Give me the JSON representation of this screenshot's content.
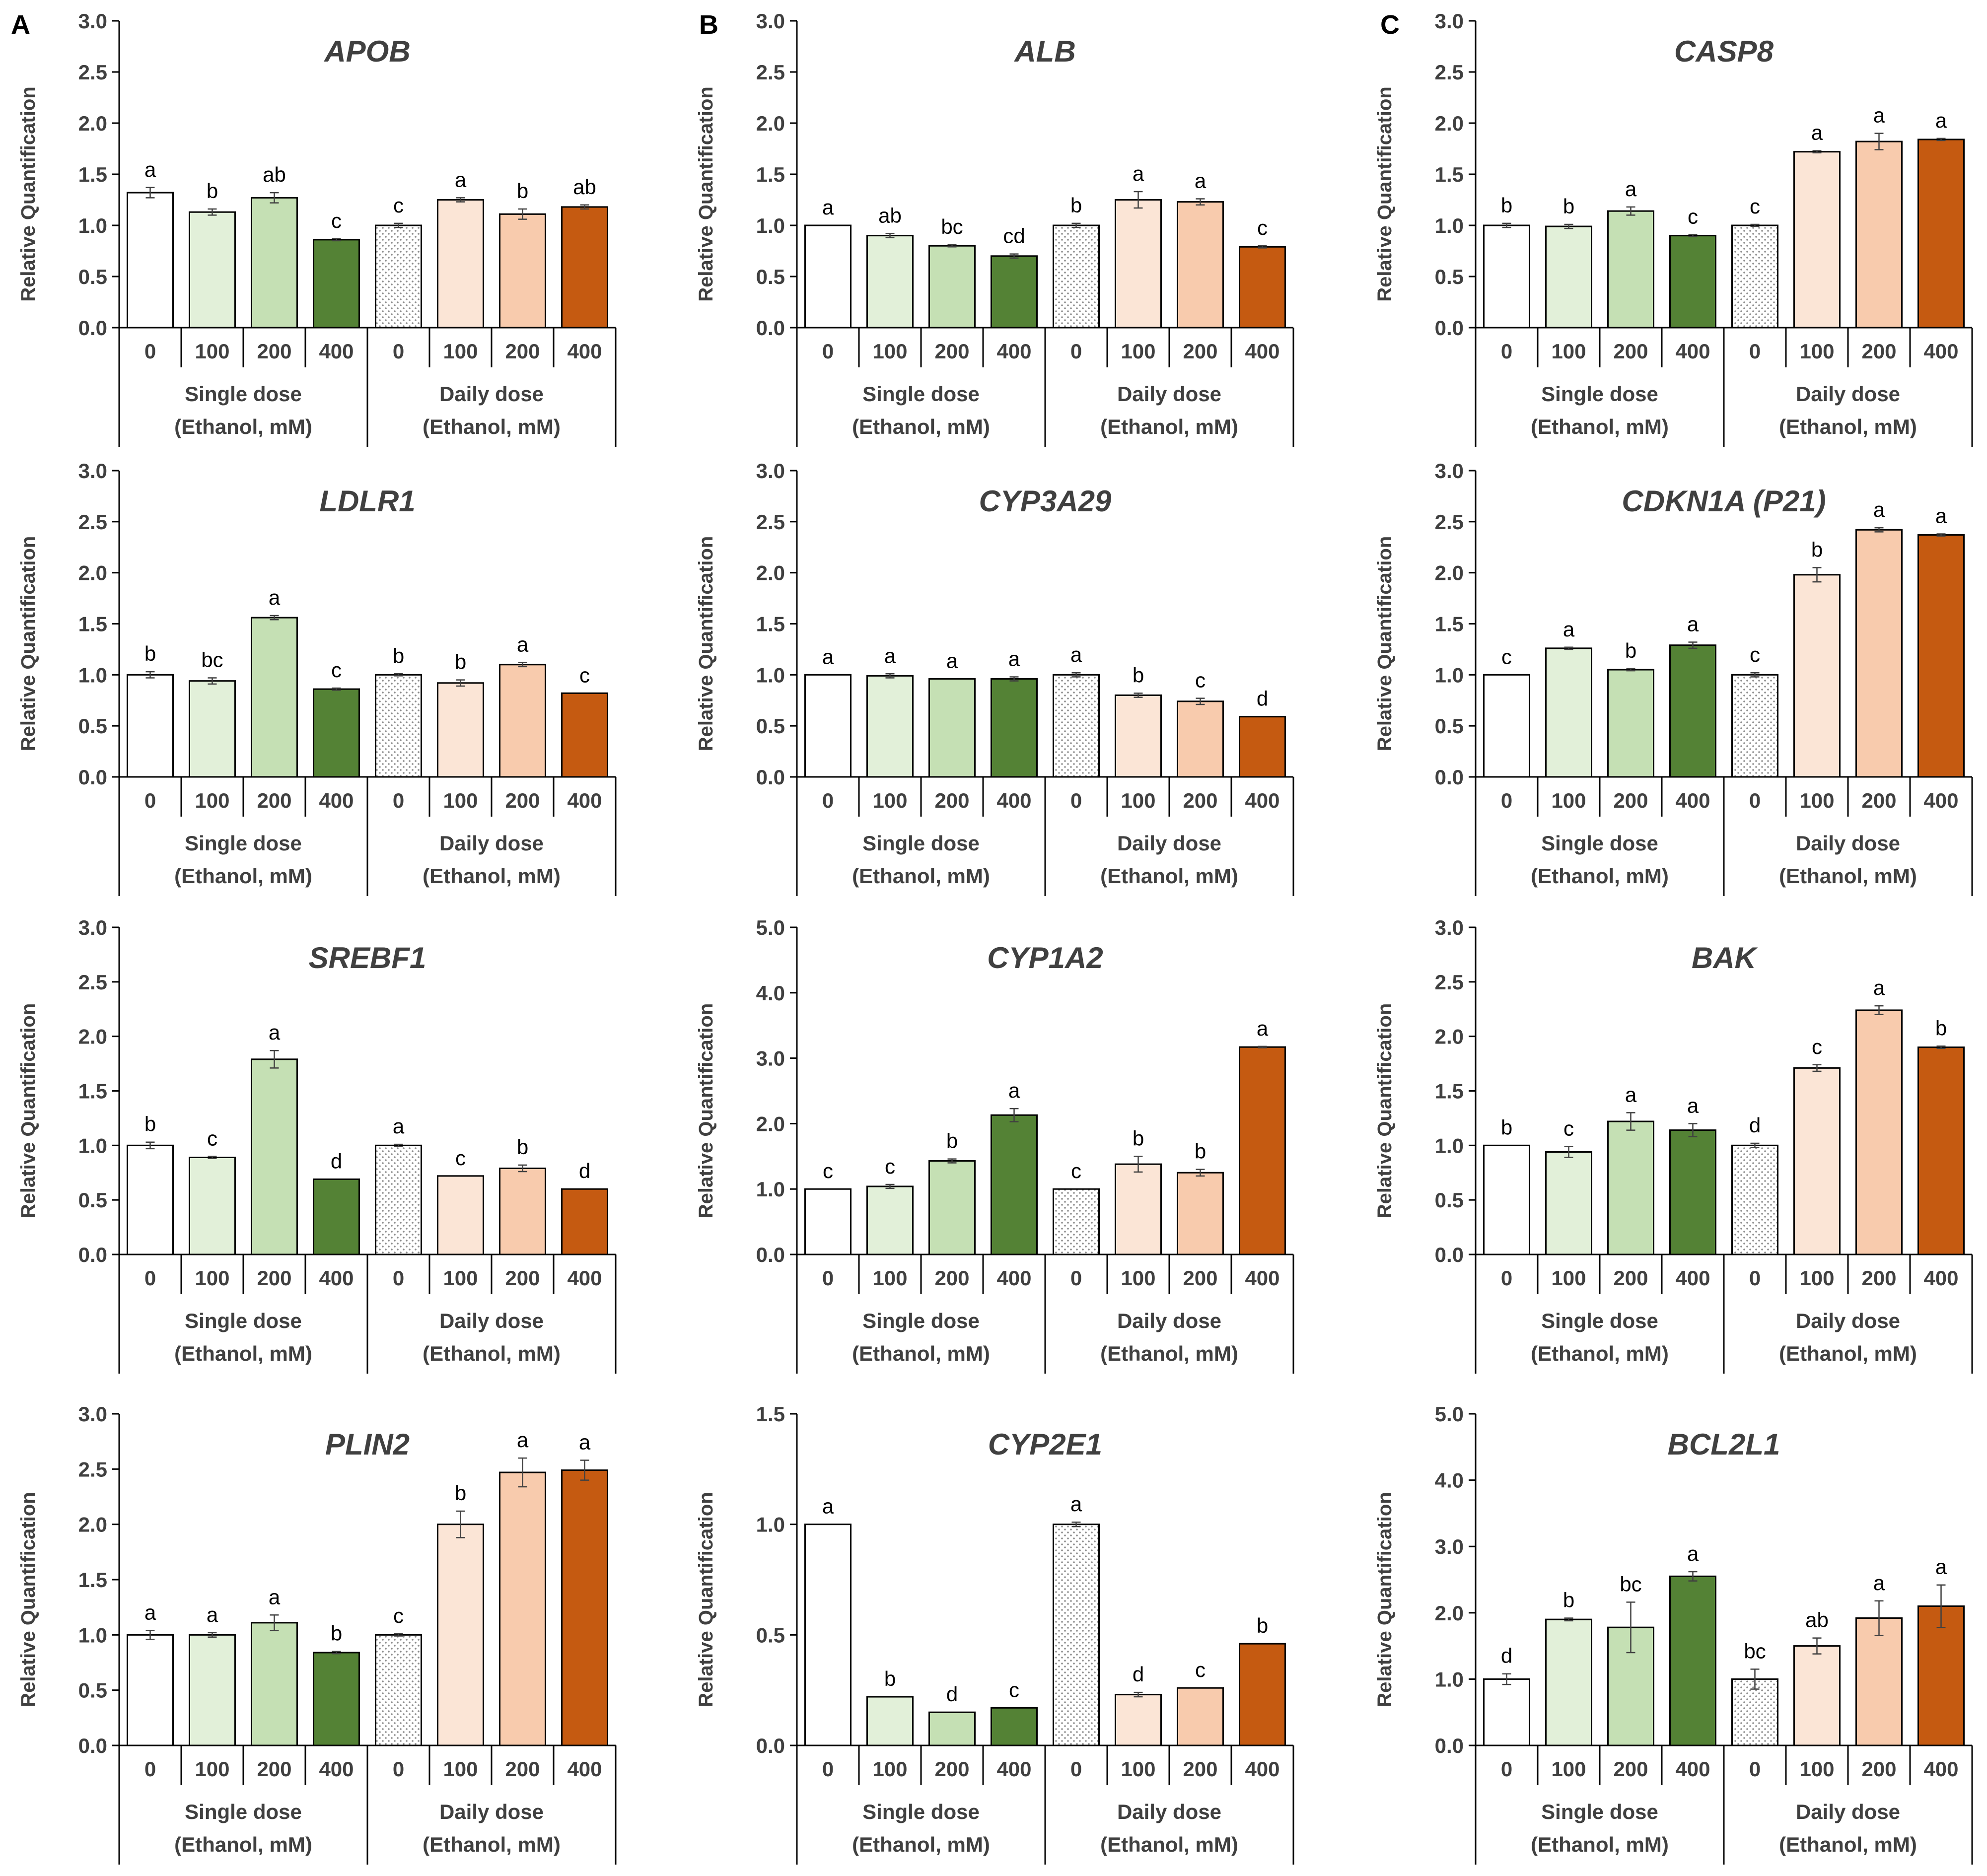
{
  "figure": {
    "panel_labels": [
      "A",
      "B",
      "C"
    ],
    "y_axis_label": "Relative Quantification",
    "dose_levels": [
      "0",
      "100",
      "200",
      "400"
    ],
    "group_names": [
      "Single dose",
      "Daily dose"
    ],
    "group_unit": "(Ethanol, mM)"
  },
  "colors": {
    "bars": [
      "#ffffff",
      "#e2f0d9",
      "#c5e0b4",
      "#548235",
      "dotted",
      "#fbe5d6",
      "#f8cbad",
      "#c55a11"
    ],
    "axis": "#000000",
    "text": "#404040"
  },
  "chart_data": [
    {
      "type": "bar",
      "title": "APOB",
      "ylabel": "Relative Quantification",
      "ylim": [
        0,
        3.0
      ],
      "yticks": [
        "0.0",
        "0.5",
        "1.0",
        "1.5",
        "2.0",
        "2.5",
        "3.0"
      ],
      "values": [
        1.32,
        1.13,
        1.27,
        0.86,
        1.0,
        1.25,
        1.11,
        1.18
      ],
      "errors": [
        0.05,
        0.03,
        0.05,
        0.01,
        0.02,
        0.02,
        0.05,
        0.02
      ],
      "letters": [
        "a",
        "b",
        "ab",
        "c",
        "c",
        "a",
        "b",
        "ab"
      ]
    },
    {
      "type": "bar",
      "title": "ALB",
      "ylabel": "Relative Quantification",
      "ylim": [
        0,
        3.0
      ],
      "yticks": [
        "0.0",
        "0.5",
        "1.0",
        "1.5",
        "2.0",
        "2.5",
        "3.0"
      ],
      "values": [
        1.0,
        0.9,
        0.8,
        0.7,
        1.0,
        1.25,
        1.23,
        0.79
      ],
      "errors": [
        0.0,
        0.02,
        0.01,
        0.02,
        0.02,
        0.08,
        0.03,
        0.01
      ],
      "letters": [
        "a",
        "ab",
        "bc",
        "cd",
        "b",
        "a",
        "a",
        "c"
      ]
    },
    {
      "type": "bar",
      "title": "CASP8",
      "ylabel": "Relative Quantification",
      "ylim": [
        0,
        3.0
      ],
      "yticks": [
        "0.0",
        "0.5",
        "1.0",
        "1.5",
        "2.0",
        "2.5",
        "3.0"
      ],
      "values": [
        1.0,
        0.99,
        1.14,
        0.9,
        1.0,
        1.72,
        1.82,
        1.84
      ],
      "errors": [
        0.02,
        0.02,
        0.04,
        0.01,
        0.01,
        0.01,
        0.08,
        0.01
      ],
      "letters": [
        "b",
        "b",
        "a",
        "c",
        "c",
        "a",
        "a",
        "a"
      ]
    },
    {
      "type": "bar",
      "title": "LDLR1",
      "ylabel": "Relative Quantification",
      "ylim": [
        0,
        3.0
      ],
      "yticks": [
        "0.0",
        "0.5",
        "1.0",
        "1.5",
        "2.0",
        "2.5",
        "3.0"
      ],
      "values": [
        1.0,
        0.94,
        1.56,
        0.86,
        1.0,
        0.92,
        1.1,
        0.82
      ],
      "errors": [
        0.03,
        0.03,
        0.02,
        0.01,
        0.01,
        0.03,
        0.02,
        0.0
      ],
      "letters": [
        "b",
        "bc",
        "a",
        "c",
        "b",
        "b",
        "a",
        "c"
      ]
    },
    {
      "type": "bar",
      "title": "CYP3A29",
      "ylabel": "Relative Quantification",
      "ylim": [
        0,
        3.0
      ],
      "yticks": [
        "0.0",
        "0.5",
        "1.0",
        "1.5",
        "2.0",
        "2.5",
        "3.0"
      ],
      "values": [
        1.0,
        0.99,
        0.96,
        0.96,
        1.0,
        0.8,
        0.74,
        0.59
      ],
      "errors": [
        0.0,
        0.02,
        0.0,
        0.02,
        0.02,
        0.02,
        0.03,
        0.0
      ],
      "letters": [
        "a",
        "a",
        "a",
        "a",
        "a",
        "b",
        "c",
        "d"
      ]
    },
    {
      "type": "bar",
      "title": "CDKN1A (P21)",
      "ylabel": "Relative Quantification",
      "ylim": [
        0,
        3.0
      ],
      "yticks": [
        "0.0",
        "0.5",
        "1.0",
        "1.5",
        "2.0",
        "2.5",
        "3.0"
      ],
      "values": [
        1.0,
        1.26,
        1.05,
        1.29,
        1.0,
        1.98,
        2.42,
        2.37
      ],
      "errors": [
        0.0,
        0.01,
        0.01,
        0.03,
        0.02,
        0.07,
        0.02,
        0.01
      ],
      "letters": [
        "c",
        "a",
        "b",
        "a",
        "c",
        "b",
        "a",
        "a"
      ]
    },
    {
      "type": "bar",
      "title": "SREBF1",
      "ylabel": "Relative Quantification",
      "ylim": [
        0,
        3.0
      ],
      "yticks": [
        "0.0",
        "0.5",
        "1.0",
        "1.5",
        "2.0",
        "2.5",
        "3.0"
      ],
      "values": [
        1.0,
        0.89,
        1.79,
        0.69,
        1.0,
        0.72,
        0.79,
        0.6
      ],
      "errors": [
        0.03,
        0.01,
        0.08,
        0.0,
        0.01,
        0.0,
        0.03,
        0.0
      ],
      "letters": [
        "b",
        "c",
        "a",
        "d",
        "a",
        "c",
        "b",
        "d"
      ]
    },
    {
      "type": "bar",
      "title": "CYP1A2",
      "ylabel": "Relative Quantification",
      "ylim": [
        0,
        5.0
      ],
      "yticks": [
        "0.0",
        "1.0",
        "2.0",
        "3.0",
        "4.0",
        "5.0"
      ],
      "values": [
        1.0,
        1.04,
        1.43,
        2.13,
        1.0,
        1.38,
        1.25,
        3.17
      ],
      "errors": [
        0.0,
        0.03,
        0.03,
        0.1,
        0.0,
        0.12,
        0.05,
        0.01
      ],
      "letters": [
        "c",
        "c",
        "b",
        "a",
        "c",
        "b",
        "b",
        "a"
      ]
    },
    {
      "type": "bar",
      "title": "BAK",
      "ylabel": "Relative Quantification",
      "ylim": [
        0,
        3.0
      ],
      "yticks": [
        "0.0",
        "0.5",
        "1.0",
        "1.5",
        "2.0",
        "2.5",
        "3.0"
      ],
      "values": [
        1.0,
        0.94,
        1.22,
        1.14,
        1.0,
        1.71,
        2.24,
        1.9
      ],
      "errors": [
        0.0,
        0.05,
        0.08,
        0.06,
        0.02,
        0.03,
        0.04,
        0.01
      ],
      "letters": [
        "b",
        "c",
        "a",
        "a",
        "d",
        "c",
        "a",
        "b"
      ]
    },
    {
      "type": "bar",
      "title": "PLIN2",
      "ylabel": "Relative Quantification",
      "ylim": [
        0,
        3.0
      ],
      "yticks": [
        "0.0",
        "0.5",
        "1.0",
        "1.5",
        "2.0",
        "2.5",
        "3.0"
      ],
      "values": [
        1.0,
        1.0,
        1.11,
        0.84,
        1.0,
        2.0,
        2.47,
        2.49
      ],
      "errors": [
        0.04,
        0.02,
        0.07,
        0.01,
        0.01,
        0.12,
        0.13,
        0.09
      ],
      "letters": [
        "a",
        "a",
        "a",
        "b",
        "c",
        "b",
        "a",
        "a"
      ]
    },
    {
      "type": "bar",
      "title": "CYP2E1",
      "ylabel": "Relative Quantification",
      "ylim": [
        0,
        1.5
      ],
      "yticks": [
        "0.0",
        "0.5",
        "1.0",
        "1.5"
      ],
      "values": [
        1.0,
        0.22,
        0.15,
        0.17,
        1.0,
        0.23,
        0.26,
        0.46
      ],
      "errors": [
        0.0,
        0.0,
        0.0,
        0.0,
        0.01,
        0.01,
        0.0,
        0.0
      ],
      "letters": [
        "a",
        "b",
        "d",
        "c",
        "a",
        "d",
        "c",
        "b"
      ]
    },
    {
      "type": "bar",
      "title": "BCL2L1",
      "ylabel": "Relative Quantification",
      "ylim": [
        0,
        5.0
      ],
      "yticks": [
        "0.0",
        "1.0",
        "2.0",
        "3.0",
        "4.0",
        "5.0"
      ],
      "values": [
        1.0,
        1.9,
        1.78,
        2.55,
        1.0,
        1.5,
        1.92,
        2.1
      ],
      "errors": [
        0.08,
        0.02,
        0.38,
        0.07,
        0.15,
        0.12,
        0.26,
        0.32
      ],
      "letters": [
        "d",
        "b",
        "bc",
        "a",
        "bc",
        "ab",
        "a",
        "a"
      ]
    }
  ]
}
